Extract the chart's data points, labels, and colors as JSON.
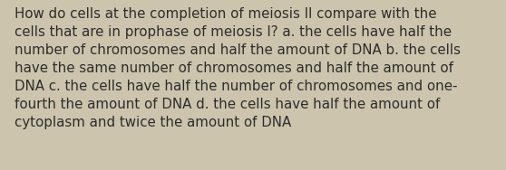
{
  "background_color": "#ccc4ac",
  "text_color": "#2d2d2d",
  "lines": [
    "How do cells at the completion of meiosis II compare with the",
    "cells that are in prophase of meiosis I? a. the cells have half the",
    "number of chromosomes and half the amount of DNA b. the cells",
    "have the same number of chromosomes and half the amount of",
    "DNA c. the cells have half the number of chromosomes and one-",
    "fourth the amount of DNA d. the cells have half the amount of",
    "cytoplasm and twice the amount of DNA"
  ],
  "font_size": 10.8,
  "fig_width": 5.58,
  "fig_height": 1.88,
  "dpi": 100
}
